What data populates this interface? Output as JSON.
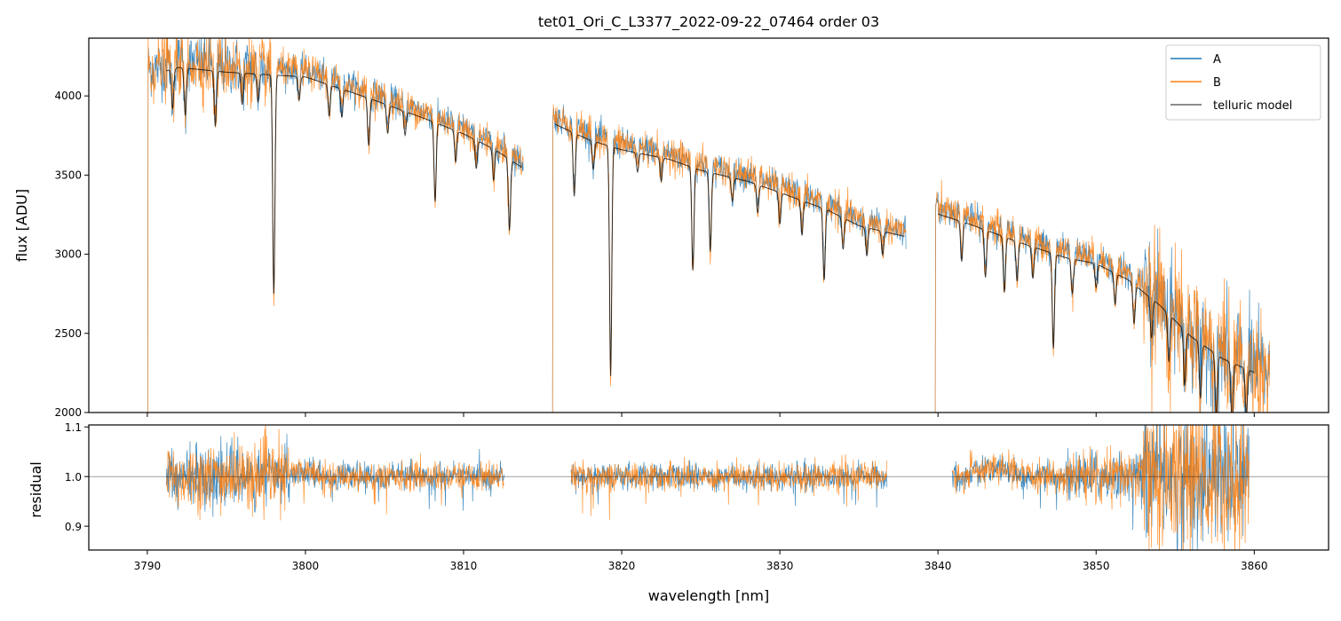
{
  "chart_data": {
    "type": "line",
    "title": "tet01_Ori_C_L3377_2022-09-22_07464  order 03",
    "xlabel": "wavelength [nm]",
    "top_panel": {
      "ylabel": "flux [ADU]",
      "xlim": [
        3786.3,
        3864.7
      ],
      "ylim": [
        2000,
        4365
      ],
      "yticks": [
        2000,
        2500,
        3000,
        3500,
        4000
      ],
      "legend": {
        "placement": "top-right",
        "entries": [
          "A",
          "B",
          "telluric model"
        ]
      },
      "segments": [
        {
          "range": [
            3790.0,
            3813.8
          ],
          "continuum": [
            [
              3790.5,
              4180
            ],
            [
              3792,
              4220
            ],
            [
              3795,
              4190
            ],
            [
              3800,
              4160
            ],
            [
              3803,
              4060
            ],
            [
              3805,
              3990
            ],
            [
              3808,
              3880
            ],
            [
              3810,
              3800
            ],
            [
              3812,
              3700
            ],
            [
              3813.8,
              3580
            ]
          ]
        },
        {
          "range": [
            3815.6,
            3838.0
          ],
          "continuum": [
            [
              3815.6,
              3870
            ],
            [
              3818,
              3760
            ],
            [
              3820,
              3700
            ],
            [
              3823,
              3640
            ],
            [
              3825,
              3570
            ],
            [
              3828,
              3500
            ],
            [
              3830,
              3430
            ],
            [
              3833,
              3320
            ],
            [
              3835,
              3220
            ],
            [
              3838,
              3150
            ]
          ]
        },
        {
          "range": [
            3839.8,
            3861.0
          ],
          "continuum": [
            [
              3839.8,
              3300
            ],
            [
              3842,
              3230
            ],
            [
              3845,
              3120
            ],
            [
              3848,
              3020
            ],
            [
              3850,
              2980
            ],
            [
              3852,
              2880
            ],
            [
              3854,
              2720
            ],
            [
              3856,
              2520
            ],
            [
              3858,
              2380
            ],
            [
              3861,
              2250
            ]
          ]
        }
      ],
      "model_range": [
        3791.2,
        3860.0
      ],
      "absorption_lines": [
        [
          3791.6,
          250
        ],
        [
          3792.4,
          300
        ],
        [
          3794.3,
          350
        ],
        [
          3796.0,
          200
        ],
        [
          3797.0,
          180
        ],
        [
          3798.0,
          1380
        ],
        [
          3799.6,
          150
        ],
        [
          3801.5,
          200
        ],
        [
          3802.3,
          180
        ],
        [
          3804.0,
          300
        ],
        [
          3805.2,
          180
        ],
        [
          3806.3,
          150
        ],
        [
          3808.2,
          500
        ],
        [
          3809.5,
          200
        ],
        [
          3810.8,
          180
        ],
        [
          3811.9,
          200
        ],
        [
          3812.9,
          450
        ],
        [
          3817.0,
          400
        ],
        [
          3818.2,
          180
        ],
        [
          3819.3,
          1450
        ],
        [
          3821.0,
          120
        ],
        [
          3822.5,
          150
        ],
        [
          3824.5,
          650
        ],
        [
          3825.6,
          500
        ],
        [
          3827.0,
          150
        ],
        [
          3828.6,
          180
        ],
        [
          3830.0,
          200
        ],
        [
          3831.4,
          220
        ],
        [
          3832.8,
          450
        ],
        [
          3834.0,
          200
        ],
        [
          3835.5,
          180
        ],
        [
          3836.5,
          150
        ],
        [
          3841.5,
          250
        ],
        [
          3843.0,
          300
        ],
        [
          3844.2,
          350
        ],
        [
          3845.0,
          250
        ],
        [
          3846.0,
          200
        ],
        [
          3847.3,
          600
        ],
        [
          3848.5,
          220
        ],
        [
          3850.0,
          150
        ],
        [
          3851.2,
          200
        ],
        [
          3852.4,
          250
        ],
        [
          3853.5,
          250
        ],
        [
          3854.6,
          300
        ],
        [
          3855.6,
          350
        ],
        [
          3856.6,
          350
        ],
        [
          3857.6,
          400
        ],
        [
          3858.6,
          400
        ],
        [
          3859.5,
          300
        ]
      ]
    },
    "bottom_panel": {
      "ylabel": "residual",
      "ylim": [
        0.852,
        1.104
      ],
      "yticks": [
        "0.9",
        "1.0",
        "1.1"
      ],
      "reference_line": 1.0,
      "segments": [
        [
          3791.2,
          3812.6
        ],
        [
          3816.8,
          3836.8
        ],
        [
          3840.9,
          3859.7
        ]
      ]
    },
    "xticks": [
      "3790",
      "3800",
      "3810",
      "3820",
      "3830",
      "3840",
      "3850",
      "3860"
    ],
    "colors": {
      "A": "#1f77b4",
      "B": "#ff7f0e",
      "telluric model": "#000000"
    }
  }
}
